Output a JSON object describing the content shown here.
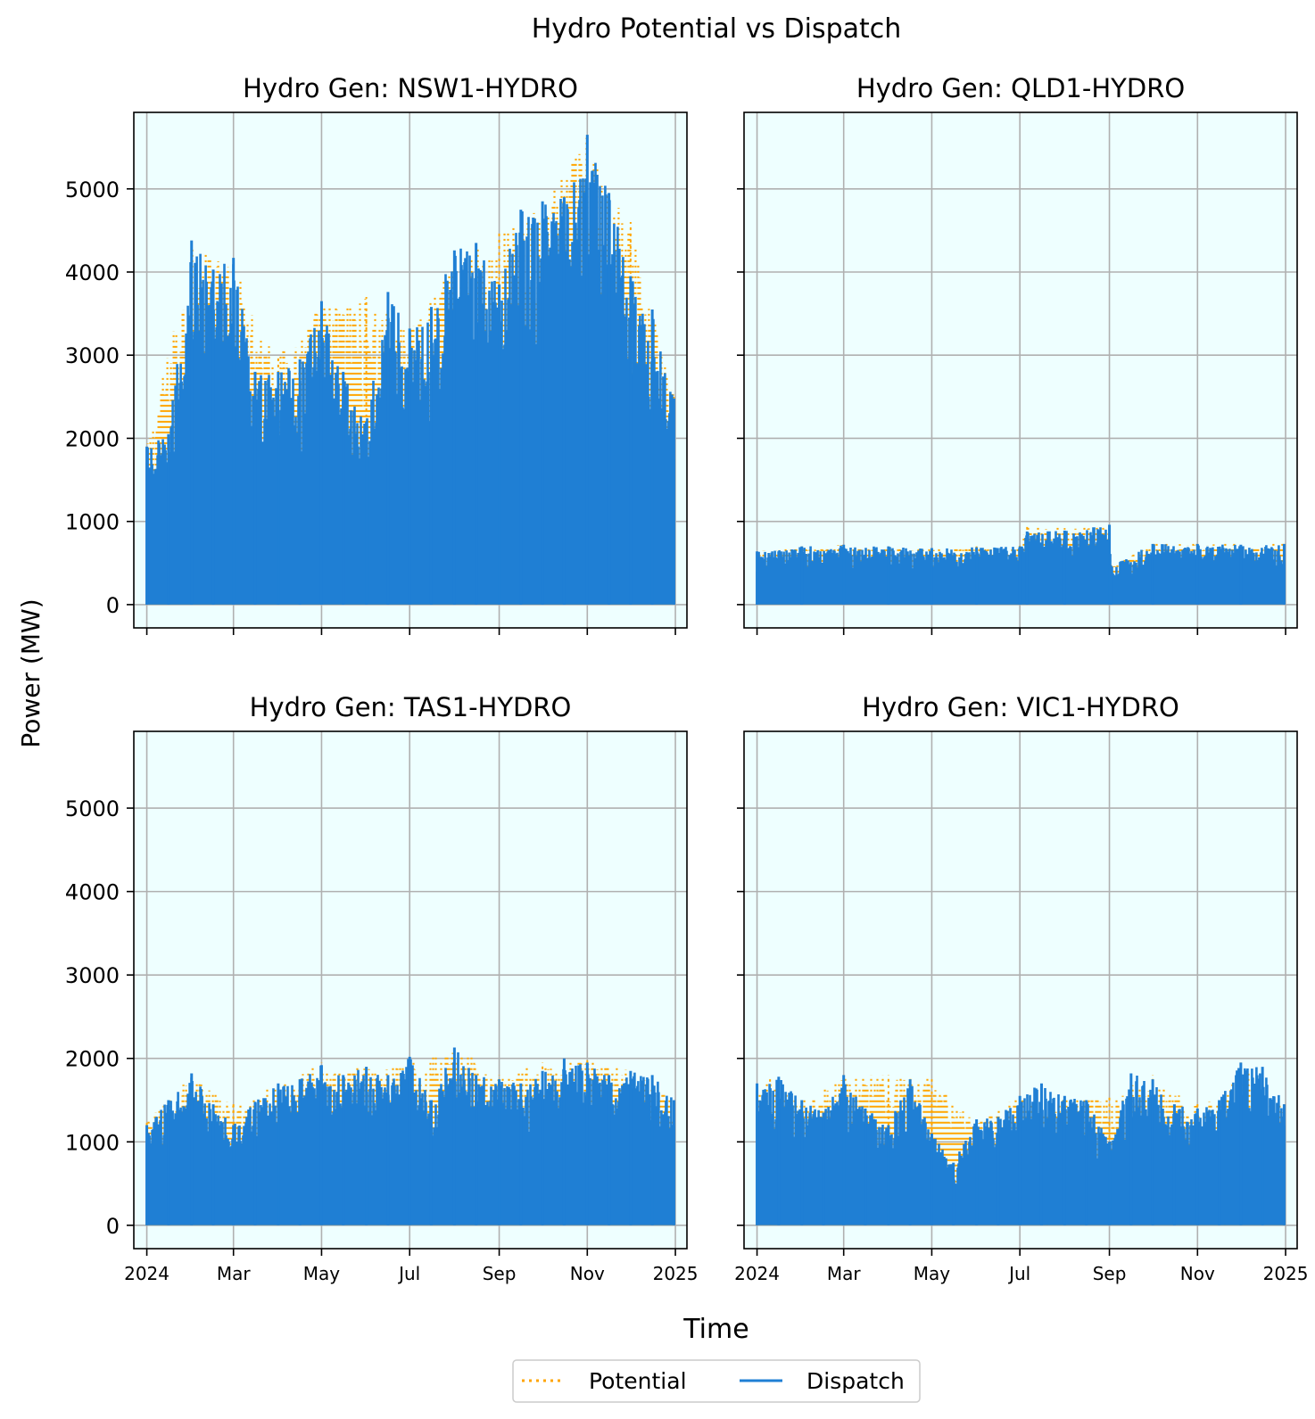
{
  "figure": {
    "title": "Hydro Potential vs Dispatch",
    "xlabel": "Time",
    "ylabel": "Power (MW)",
    "legend": {
      "placement": "bottom-center",
      "entries": [
        {
          "label": "Potential",
          "color": "#ffa500",
          "style": "dotted"
        },
        {
          "label": "Dispatch",
          "color": "#1f7fd4",
          "style": "solid"
        }
      ]
    }
  },
  "chart_data": [
    {
      "type": "line",
      "title": "Hydro Gen: NSW1-HYDRO",
      "x_ticks": [
        "2024",
        "Mar",
        "May",
        "Jul",
        "Sep",
        "Nov",
        "2025"
      ],
      "x_tick_dates": [
        "2024-01-01",
        "2024-03-01",
        "2024-05-01",
        "2024-07-01",
        "2024-09-01",
        "2024-11-01",
        "2025-01-01"
      ],
      "xlim": [
        "2023-12-23",
        "2025-01-09"
      ],
      "y_ticks": [
        0,
        1000,
        2000,
        3000,
        4000,
        5000
      ],
      "ylim": [
        -280,
        5920
      ],
      "grid": true,
      "background": "#eeffff",
      "series": [
        {
          "name": "Potential",
          "color": "#ffa500",
          "x": [
            "2024-01-01",
            "2024-02-01",
            "2024-03-01",
            "2024-04-01",
            "2024-05-01",
            "2024-06-01",
            "2024-07-01",
            "2024-08-01",
            "2024-09-01",
            "2024-10-01",
            "2024-11-01",
            "2024-12-01",
            "2024-12-31"
          ],
          "max": [
            1900,
            4300,
            4100,
            3000,
            3650,
            3700,
            3300,
            4100,
            4500,
            4800,
            5650,
            4600,
            2500
          ],
          "min": [
            0,
            0,
            0,
            0,
            0,
            0,
            0,
            0,
            0,
            0,
            0,
            0,
            0
          ]
        },
        {
          "name": "Dispatch",
          "color": "#1f7fd4",
          "x": [
            "2024-01-01",
            "2024-01-16",
            "2024-02-01",
            "2024-02-16",
            "2024-03-01",
            "2024-03-16",
            "2024-04-01",
            "2024-04-16",
            "2024-05-01",
            "2024-05-16",
            "2024-06-01",
            "2024-06-16",
            "2024-07-01",
            "2024-07-16",
            "2024-08-01",
            "2024-08-16",
            "2024-09-01",
            "2024-09-16",
            "2024-10-01",
            "2024-10-16",
            "2024-11-01",
            "2024-11-16",
            "2024-12-01",
            "2024-12-16",
            "2024-12-31"
          ],
          "max": [
            1900,
            2050,
            4380,
            4030,
            4170,
            2800,
            2800,
            2950,
            3650,
            2800,
            2200,
            3760,
            3320,
            3580,
            4260,
            4350,
            3850,
            4750,
            4850,
            4900,
            5650,
            4950,
            3950,
            3550,
            2480
          ],
          "min": [
            0,
            0,
            0,
            0,
            0,
            0,
            0,
            0,
            0,
            0,
            0,
            0,
            0,
            0,
            0,
            0,
            0,
            0,
            0,
            0,
            0,
            0,
            0,
            0,
            0
          ]
        }
      ]
    },
    {
      "type": "line",
      "title": "Hydro Gen: QLD1-HYDRO",
      "x_ticks": [
        "2024",
        "Mar",
        "May",
        "Jul",
        "Sep",
        "Nov",
        "2025"
      ],
      "x_tick_dates": [
        "2024-01-01",
        "2024-03-01",
        "2024-05-01",
        "2024-07-01",
        "2024-09-01",
        "2024-11-01",
        "2025-01-01"
      ],
      "xlim": [
        "2023-12-23",
        "2025-01-09"
      ],
      "y_ticks": [
        0,
        1000,
        2000,
        3000,
        4000,
        5000
      ],
      "ylim": [
        -280,
        5920
      ],
      "grid": true,
      "background": "#eeffff",
      "series": [
        {
          "name": "Potential",
          "color": "#ffa500",
          "x": [
            "2024-01-01",
            "2024-02-01",
            "2024-03-01",
            "2024-04-01",
            "2024-05-01",
            "2024-06-01",
            "2024-07-01",
            "2024-07-06",
            "2024-08-01",
            "2024-09-01",
            "2024-09-02",
            "2024-10-01",
            "2024-11-01",
            "2024-12-01",
            "2024-12-31"
          ],
          "max": [
            650,
            700,
            720,
            700,
            680,
            700,
            720,
            950,
            920,
            960,
            480,
            740,
            740,
            730,
            740
          ],
          "min": [
            0,
            0,
            0,
            0,
            0,
            0,
            0,
            0,
            0,
            0,
            0,
            0,
            0,
            0,
            0
          ]
        },
        {
          "name": "Dispatch",
          "color": "#1f7fd4",
          "x": [
            "2024-01-01",
            "2024-02-01",
            "2024-03-01",
            "2024-04-01",
            "2024-05-01",
            "2024-06-01",
            "2024-07-01",
            "2024-07-06",
            "2024-08-01",
            "2024-09-01",
            "2024-09-02",
            "2024-10-01",
            "2024-11-01",
            "2024-12-01",
            "2024-12-31"
          ],
          "max": [
            640,
            700,
            720,
            700,
            680,
            690,
            700,
            880,
            890,
            960,
            470,
            730,
            730,
            720,
            730
          ],
          "min": [
            0,
            0,
            0,
            0,
            0,
            0,
            0,
            0,
            0,
            0,
            0,
            0,
            0,
            0,
            0
          ]
        }
      ]
    },
    {
      "type": "line",
      "title": "Hydro Gen: TAS1-HYDRO",
      "x_ticks": [
        "2024",
        "Mar",
        "May",
        "Jul",
        "Sep",
        "Nov",
        "2025"
      ],
      "x_tick_dates": [
        "2024-01-01",
        "2024-03-01",
        "2024-05-01",
        "2024-07-01",
        "2024-09-01",
        "2024-11-01",
        "2025-01-01"
      ],
      "xlim": [
        "2023-12-23",
        "2025-01-09"
      ],
      "y_ticks": [
        0,
        1000,
        2000,
        3000,
        4000,
        5000
      ],
      "ylim": [
        -280,
        5920
      ],
      "grid": true,
      "background": "#eeffff",
      "series": [
        {
          "name": "Potential",
          "color": "#ffa500",
          "x": [
            "2024-01-01",
            "2024-02-01",
            "2024-03-01",
            "2024-04-01",
            "2024-05-01",
            "2024-06-01",
            "2024-07-01",
            "2024-08-01",
            "2024-09-01",
            "2024-10-01",
            "2024-11-01",
            "2024-12-01",
            "2024-12-31"
          ],
          "max": [
            1250,
            1800,
            1450,
            1700,
            1950,
            1900,
            1950,
            2150,
            1800,
            1950,
            2000,
            1850,
            1500
          ],
          "min": [
            0,
            0,
            0,
            0,
            0,
            0,
            0,
            0,
            0,
            0,
            0,
            0,
            0
          ]
        },
        {
          "name": "Dispatch",
          "color": "#1f7fd4",
          "x": [
            "2024-01-01",
            "2024-01-16",
            "2024-02-01",
            "2024-02-16",
            "2024-03-01",
            "2024-03-16",
            "2024-04-01",
            "2024-04-16",
            "2024-05-01",
            "2024-05-16",
            "2024-06-01",
            "2024-06-16",
            "2024-07-01",
            "2024-07-16",
            "2024-08-01",
            "2024-08-16",
            "2024-09-01",
            "2024-09-16",
            "2024-10-01",
            "2024-10-16",
            "2024-11-01",
            "2024-11-16",
            "2024-12-01",
            "2024-12-16",
            "2024-12-31"
          ],
          "max": [
            1200,
            1500,
            1820,
            1450,
            1200,
            1480,
            1700,
            1750,
            1920,
            1800,
            1900,
            1800,
            2020,
            1500,
            2130,
            1800,
            1750,
            1700,
            1850,
            2000,
            1950,
            1800,
            1850,
            1800,
            1500
          ],
          "min": [
            0,
            0,
            0,
            0,
            0,
            0,
            0,
            0,
            0,
            0,
            0,
            0,
            0,
            0,
            0,
            0,
            0,
            0,
            0,
            0,
            0,
            0,
            0,
            0,
            0
          ]
        }
      ]
    },
    {
      "type": "line",
      "title": "Hydro Gen: VIC1-HYDRO",
      "x_ticks": [
        "2024",
        "Mar",
        "May",
        "Jul",
        "Sep",
        "Nov",
        "2025"
      ],
      "x_tick_dates": [
        "2024-01-01",
        "2024-03-01",
        "2024-05-01",
        "2024-07-01",
        "2024-09-01",
        "2024-11-01",
        "2025-01-01"
      ],
      "xlim": [
        "2023-12-23",
        "2025-01-09"
      ],
      "y_ticks": [
        0,
        1000,
        2000,
        3000,
        4000,
        5000
      ],
      "ylim": [
        -280,
        5920
      ],
      "grid": true,
      "background": "#eeffff",
      "series": [
        {
          "name": "Potential",
          "color": "#ffa500",
          "x": [
            "2024-01-01",
            "2024-01-10",
            "2024-02-01",
            "2024-03-01",
            "2024-04-01",
            "2024-05-01",
            "2024-06-01",
            "2024-07-01",
            "2024-07-20",
            "2024-08-01",
            "2024-09-01",
            "2024-10-01",
            "2024-11-01",
            "2024-11-20",
            "2024-12-01",
            "2024-12-31"
          ],
          "max": [
            1700,
            1750,
            1500,
            1800,
            1800,
            1750,
            1250,
            1550,
            1300,
            1550,
            1550,
            1800,
            1450,
            1600,
            1950,
            1450
          ],
          "min": [
            0,
            0,
            0,
            0,
            0,
            0,
            0,
            0,
            0,
            0,
            0,
            0,
            0,
            0,
            0,
            0
          ]
        },
        {
          "name": "Dispatch",
          "color": "#1f7fd4",
          "x": [
            "2024-01-01",
            "2024-01-16",
            "2024-02-01",
            "2024-02-16",
            "2024-03-01",
            "2024-03-16",
            "2024-04-01",
            "2024-04-16",
            "2024-05-01",
            "2024-05-16",
            "2024-06-01",
            "2024-06-16",
            "2024-07-01",
            "2024-07-16",
            "2024-08-01",
            "2024-08-16",
            "2024-09-01",
            "2024-09-16",
            "2024-10-01",
            "2024-10-16",
            "2024-11-01",
            "2024-11-16",
            "2024-12-01",
            "2024-12-16",
            "2024-12-31"
          ],
          "max": [
            1700,
            1780,
            1500,
            1350,
            1800,
            1400,
            1200,
            1750,
            1100,
            750,
            1270,
            1300,
            1550,
            1700,
            1550,
            1500,
            1000,
            1820,
            1750,
            1450,
            1400,
            1500,
            1950,
            1900,
            1450
          ],
          "min": [
            0,
            0,
            0,
            0,
            0,
            0,
            0,
            0,
            0,
            0,
            0,
            0,
            0,
            0,
            0,
            0,
            0,
            0,
            0,
            0,
            0,
            0,
            0,
            0,
            0
          ]
        }
      ]
    }
  ]
}
